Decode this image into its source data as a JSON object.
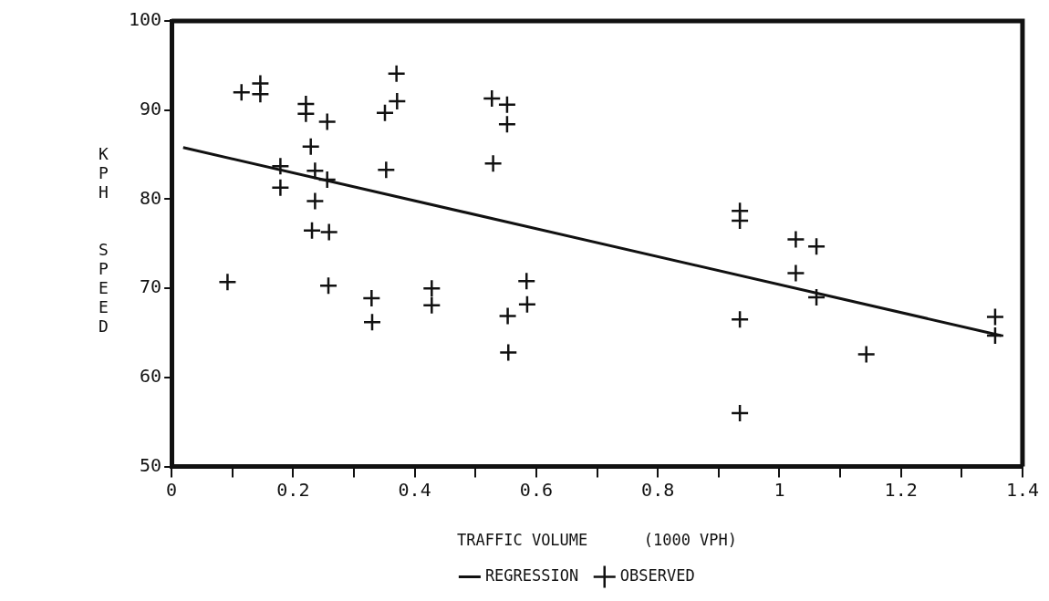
{
  "chart_data": {
    "type": "scatter",
    "xlabel": "TRAFFIC VOLUME      (1000 VPH)",
    "ylabel": "KPH  SPEED",
    "xlim": [
      0,
      1.4
    ],
    "ylim": [
      50,
      100
    ],
    "xticks": [
      0,
      {
        "value": 0.1,
        "label": null
      },
      0.2,
      {
        "value": 0.3,
        "label": null
      },
      0.4,
      {
        "value": 0.5,
        "label": null
      },
      0.6,
      {
        "value": 0.7,
        "label": null
      },
      0.8,
      {
        "value": 0.9,
        "label": null
      },
      1,
      {
        "value": 1.1,
        "label": null
      },
      1.2,
      {
        "value": 1.3,
        "label": null
      },
      1.4
    ],
    "yticks": [
      50,
      60,
      70,
      80,
      90,
      100
    ],
    "grid": false,
    "legend": "bottom",
    "marker": "cross",
    "series": [
      {
        "name": "REGRESSION",
        "type": "line",
        "color": "#111111",
        "marker": "none",
        "line_style": "solid",
        "x": [
          0.019,
          1.365
        ],
        "values": [
          85.8,
          64.7
        ]
      },
      {
        "name": "OBSERVED",
        "type": "scatter",
        "color": "#111111",
        "x": [
          0.092,
          0.115,
          0.146,
          0.146,
          0.179,
          0.179,
          0.221,
          0.221,
          0.229,
          0.236,
          0.236,
          0.231,
          0.256,
          0.256,
          0.259,
          0.258,
          0.329,
          0.33,
          0.351,
          0.353,
          0.37,
          0.371,
          0.428,
          0.428,
          0.527,
          0.529,
          0.552,
          0.552,
          0.553,
          0.554,
          0.584,
          0.585,
          0.935,
          0.935,
          0.935,
          0.935,
          1.027,
          1.027,
          1.061,
          1.061,
          1.143,
          1.355,
          1.355
        ],
        "values": [
          70.7,
          92.0,
          93.0,
          91.8,
          83.7,
          81.3,
          90.7,
          89.6,
          85.9,
          83.2,
          79.8,
          76.5,
          88.7,
          82.2,
          76.3,
          70.3,
          68.9,
          66.2,
          89.7,
          83.3,
          94.1,
          91.0,
          70.0,
          68.1,
          91.3,
          84.0,
          90.6,
          88.4,
          66.9,
          62.8,
          70.8,
          68.2,
          78.7,
          77.6,
          66.5,
          56.0,
          75.5,
          71.7,
          74.7,
          69.0,
          62.6,
          66.8,
          64.7
        ]
      }
    ]
  }
}
